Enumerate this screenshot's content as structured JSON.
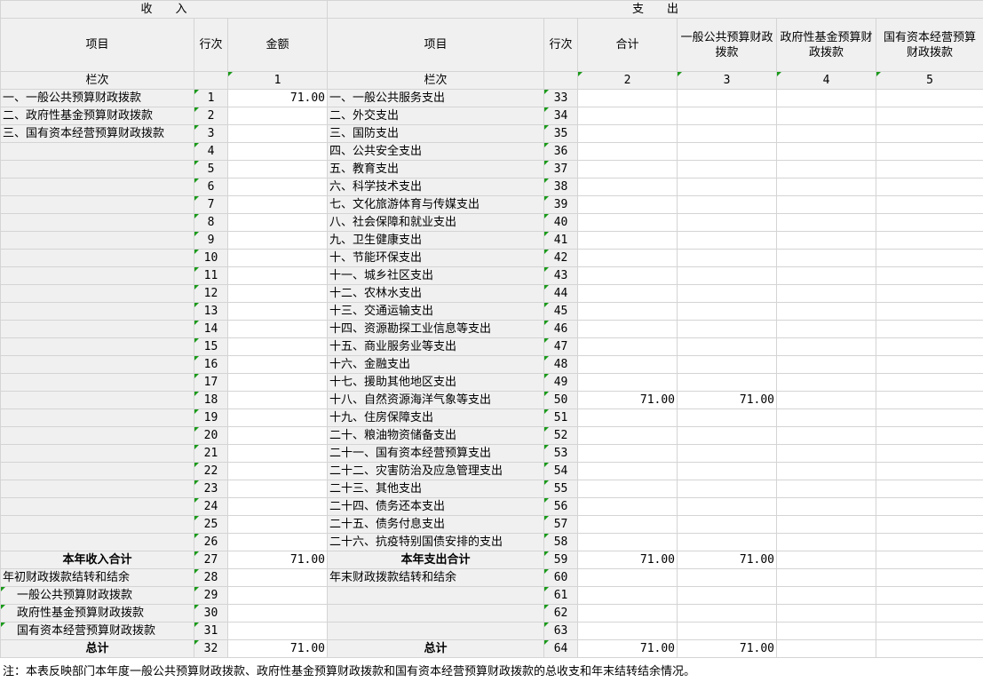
{
  "header": {
    "income": "收　　入",
    "expense": "支　　出"
  },
  "columns": {
    "item": "项目",
    "line": "行次",
    "amount": "金额",
    "item2": "项目",
    "line2": "行次",
    "total": "合计",
    "general": "一般公共预算财政拨款",
    "fund": "政府性基金预算财政拨款",
    "state": "国有资本经营预算财政拨款"
  },
  "col_numbers": {
    "label": "栏次",
    "label2": "栏次",
    "c1": "1",
    "c2": "2",
    "c3": "3",
    "c4": "4",
    "c5": "5"
  },
  "rows": [
    {
      "l": "一、一般公共预算财政拨款",
      "ln": "1",
      "amt": "71.00",
      "r": "一、一般公共服务支出",
      "rn": "33",
      "tot": "",
      "gen": ""
    },
    {
      "l": "二、政府性基金预算财政拨款",
      "ln": "2",
      "amt": "",
      "r": "二、外交支出",
      "rn": "34",
      "tot": "",
      "gen": ""
    },
    {
      "l": "三、国有资本经营预算财政拨款",
      "ln": "3",
      "amt": "",
      "r": "三、国防支出",
      "rn": "35",
      "tot": "",
      "gen": ""
    },
    {
      "l": "",
      "ln": "4",
      "amt": "",
      "r": "四、公共安全支出",
      "rn": "36",
      "tot": "",
      "gen": ""
    },
    {
      "l": "",
      "ln": "5",
      "amt": "",
      "r": "五、教育支出",
      "rn": "37",
      "tot": "",
      "gen": ""
    },
    {
      "l": "",
      "ln": "6",
      "amt": "",
      "r": "六、科学技术支出",
      "rn": "38",
      "tot": "",
      "gen": ""
    },
    {
      "l": "",
      "ln": "7",
      "amt": "",
      "r": "七、文化旅游体育与传媒支出",
      "rn": "39",
      "tot": "",
      "gen": ""
    },
    {
      "l": "",
      "ln": "8",
      "amt": "",
      "r": "八、社会保障和就业支出",
      "rn": "40",
      "tot": "",
      "gen": ""
    },
    {
      "l": "",
      "ln": "9",
      "amt": "",
      "r": "九、卫生健康支出",
      "rn": "41",
      "tot": "",
      "gen": ""
    },
    {
      "l": "",
      "ln": "10",
      "amt": "",
      "r": "十、节能环保支出",
      "rn": "42",
      "tot": "",
      "gen": ""
    },
    {
      "l": "",
      "ln": "11",
      "amt": "",
      "r": "十一、城乡社区支出",
      "rn": "43",
      "tot": "",
      "gen": ""
    },
    {
      "l": "",
      "ln": "12",
      "amt": "",
      "r": "十二、农林水支出",
      "rn": "44",
      "tot": "",
      "gen": ""
    },
    {
      "l": "",
      "ln": "13",
      "amt": "",
      "r": "十三、交通运输支出",
      "rn": "45",
      "tot": "",
      "gen": ""
    },
    {
      "l": "",
      "ln": "14",
      "amt": "",
      "r": "十四、资源勘探工业信息等支出",
      "rn": "46",
      "tot": "",
      "gen": ""
    },
    {
      "l": "",
      "ln": "15",
      "amt": "",
      "r": "十五、商业服务业等支出",
      "rn": "47",
      "tot": "",
      "gen": ""
    },
    {
      "l": "",
      "ln": "16",
      "amt": "",
      "r": "十六、金融支出",
      "rn": "48",
      "tot": "",
      "gen": ""
    },
    {
      "l": "",
      "ln": "17",
      "amt": "",
      "r": "十七、援助其他地区支出",
      "rn": "49",
      "tot": "",
      "gen": ""
    },
    {
      "l": "",
      "ln": "18",
      "amt": "",
      "r": "十八、自然资源海洋气象等支出",
      "rn": "50",
      "tot": "71.00",
      "gen": "71.00"
    },
    {
      "l": "",
      "ln": "19",
      "amt": "",
      "r": "十九、住房保障支出",
      "rn": "51",
      "tot": "",
      "gen": ""
    },
    {
      "l": "",
      "ln": "20",
      "amt": "",
      "r": "二十、粮油物资储备支出",
      "rn": "52",
      "tot": "",
      "gen": ""
    },
    {
      "l": "",
      "ln": "21",
      "amt": "",
      "r": "二十一、国有资本经营预算支出",
      "rn": "53",
      "tot": "",
      "gen": ""
    },
    {
      "l": "",
      "ln": "22",
      "amt": "",
      "r": "二十二、灾害防治及应急管理支出",
      "rn": "54",
      "tot": "",
      "gen": ""
    },
    {
      "l": "",
      "ln": "23",
      "amt": "",
      "r": "二十三、其他支出",
      "rn": "55",
      "tot": "",
      "gen": ""
    },
    {
      "l": "",
      "ln": "24",
      "amt": "",
      "r": "二十四、债务还本支出",
      "rn": "56",
      "tot": "",
      "gen": ""
    },
    {
      "l": "",
      "ln": "25",
      "amt": "",
      "r": "二十五、债务付息支出",
      "rn": "57",
      "tot": "",
      "gen": ""
    },
    {
      "l": "",
      "ln": "26",
      "amt": "",
      "r": "二十六、抗疫特别国债安排的支出",
      "rn": "58",
      "tot": "",
      "gen": ""
    },
    {
      "l": "本年收入合计",
      "ln": "27",
      "amt": "71.00",
      "r": "本年支出合计",
      "rn": "59",
      "tot": "71.00",
      "gen": "71.00",
      "bold": true
    },
    {
      "l": "年初财政拨款结转和结余",
      "ln": "28",
      "amt": "",
      "r": "年末财政拨款结转和结余",
      "rn": "60",
      "tot": "",
      "gen": ""
    },
    {
      "l": "一般公共预算财政拨款",
      "ln": "29",
      "amt": "",
      "r": "",
      "rn": "61",
      "tot": "",
      "gen": "",
      "indent": true
    },
    {
      "l": "政府性基金预算财政拨款",
      "ln": "30",
      "amt": "",
      "r": "",
      "rn": "62",
      "tot": "",
      "gen": "",
      "indent": true
    },
    {
      "l": "国有资本经营预算财政拨款",
      "ln": "31",
      "amt": "",
      "r": "",
      "rn": "63",
      "tot": "",
      "gen": "",
      "indent": true
    },
    {
      "l": "总计",
      "ln": "32",
      "amt": "71.00",
      "r": "总计",
      "rn": "64",
      "tot": "71.00",
      "gen": "71.00",
      "bold": true
    }
  ],
  "note": "注：本表反映部门本年度一般公共预算财政拨款、政府性基金预算财政拨款和国有资本经营预算财政拨款的总收支和年末结转结余情况。",
  "colors": {
    "grid": "#d4d4d4",
    "cell_bg": "#f0f0f0",
    "marker": "#1a9a1a"
  }
}
